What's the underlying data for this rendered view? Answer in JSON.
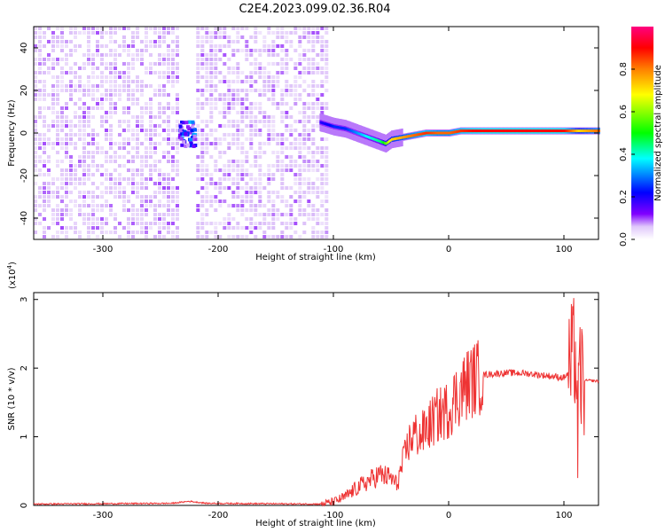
{
  "title": "C2E4.2023.099.02.36.R04",
  "chart_data": [
    {
      "type": "heatmap",
      "xlabel": "Height of straight line (km)",
      "ylabel": "Frequency (Hz)",
      "xlim": [
        -360,
        130
      ],
      "ylim": [
        -50,
        50
      ],
      "xticks": [
        -300,
        -200,
        -100,
        0,
        100
      ],
      "yticks": [
        -40,
        -20,
        0,
        20,
        40
      ],
      "colorbar": {
        "label": "Normalized spectral amplitude",
        "range": [
          0,
          1
        ],
        "ticks": [
          "0.0",
          "0.2",
          "0.4",
          "0.6",
          "0.8"
        ],
        "colormap": [
          "#ffffff",
          "#d8b8f8",
          "#8000ff",
          "#0000ff",
          "#00ffff",
          "#00ff00",
          "#ffff00",
          "#ff8000",
          "#ff0000",
          "#ff0080"
        ]
      },
      "noise_regions": [
        {
          "from": -360,
          "to": -235,
          "level": 0.12
        },
        {
          "from": -219,
          "to": -105,
          "level": 0.12
        }
      ],
      "signal_track": {
        "x": [
          -112,
          -100,
          -90,
          -80,
          -70,
          -60,
          -55,
          -50,
          -40,
          -30,
          -20,
          -10,
          0,
          10,
          20,
          40,
          60,
          80,
          100,
          112,
          130
        ],
        "y": [
          5,
          3,
          2,
          0,
          -2,
          -4,
          -5,
          -3,
          -2,
          -1,
          0,
          0,
          0,
          1,
          1,
          1,
          1,
          1,
          1,
          1,
          1
        ],
        "amplitude": [
          0.3,
          0.35,
          0.35,
          0.4,
          0.45,
          0.5,
          0.6,
          0.7,
          0.75,
          0.8,
          0.85,
          0.8,
          0.8,
          0.85,
          0.88,
          0.9,
          0.9,
          0.9,
          0.88,
          0.7,
          0.8
        ]
      },
      "blob": {
        "x": -228,
        "y": 0,
        "amplitude": 0.3
      }
    },
    {
      "type": "line",
      "xlabel": "Height of straight line (km)",
      "ylabel": "SNR (10 * v/v)",
      "yscale_label": "(x10",
      "yscale_exp": "4",
      "yscale_close": ")",
      "xlim": [
        -360,
        130
      ],
      "ylim": [
        0,
        3.1
      ],
      "xticks": [
        -300,
        -200,
        -100,
        0,
        100
      ],
      "yticks": [
        0,
        1,
        2,
        3
      ],
      "color": "#ee3333",
      "series": [
        {
          "x": [
            -360,
            -240,
            -225,
            -210,
            -110,
            -100,
            -90,
            -80,
            -70,
            -60,
            -50,
            -45,
            -40,
            -35,
            -30,
            -25,
            -20,
            -15,
            -10,
            -5,
            0,
            5,
            10,
            15,
            20,
            30,
            40,
            50,
            60,
            70,
            80,
            90,
            100,
            105,
            110,
            112,
            114,
            116,
            120,
            130
          ],
          "y": [
            0.02,
            0.03,
            0.06,
            0.03,
            0.02,
            0.05,
            0.12,
            0.25,
            0.35,
            0.45,
            0.4,
            0.3,
            0.6,
            0.9,
            1.05,
            1.0,
            1.1,
            1.2,
            1.3,
            1.35,
            1.4,
            1.55,
            1.65,
            1.75,
            1.82,
            1.9,
            1.92,
            1.93,
            1.93,
            1.92,
            1.9,
            1.88,
            1.86,
            1.95,
            2.3,
            1.0,
            1.95,
            1.8,
            1.82,
            1.81
          ]
        }
      ]
    }
  ]
}
